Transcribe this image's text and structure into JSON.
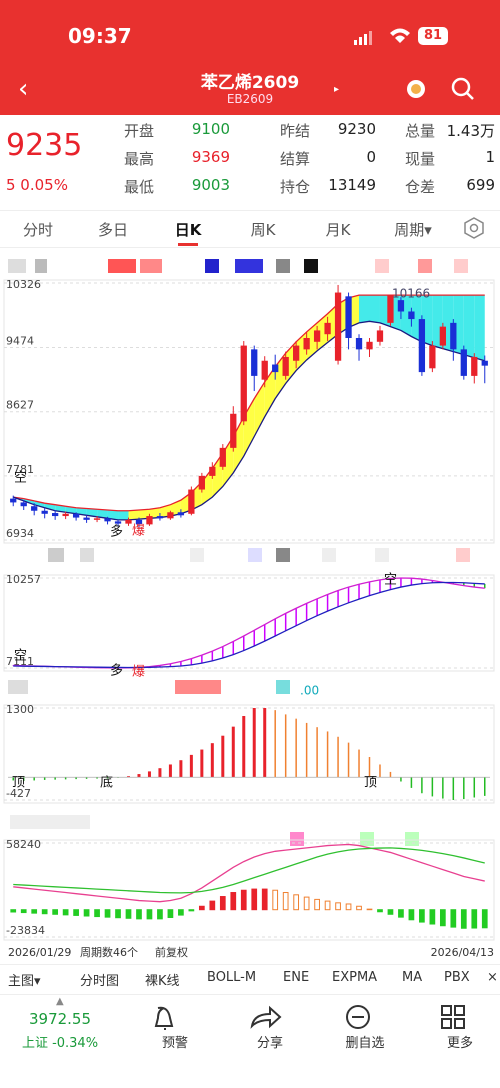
{
  "status": {
    "time": "09:37",
    "battery": "81"
  },
  "header": {
    "title": "苯乙烯2609",
    "code": "EB2609"
  },
  "quote": {
    "price": "9235",
    "change": "5 0.05%",
    "rows": [
      [
        "开盘",
        "9100",
        "昨结",
        "9230",
        "总量",
        "1.43万"
      ],
      [
        "最高",
        "9369",
        "结算",
        "0",
        "现量",
        "1"
      ],
      [
        "最低",
        "9003",
        "持仓",
        "13149",
        "仓差",
        "699"
      ]
    ]
  },
  "tabs": [
    "分时",
    "多日",
    "日K",
    "周K",
    "月K",
    "周期▾"
  ],
  "chart_data": [
    {
      "type": "candlestick",
      "ylim": [
        6934,
        10326
      ],
      "yticks": [
        10326,
        9474,
        8627,
        7781,
        6934
      ],
      "open": [
        7480,
        7430,
        7380,
        7320,
        7290,
        7250,
        7280,
        7230,
        7200,
        7220,
        7180,
        7150,
        7200,
        7140,
        7250,
        7220,
        7300,
        7280,
        7600,
        7780,
        7900,
        8150,
        8500,
        9450,
        9050,
        9250,
        9100,
        9300,
        9450,
        9550,
        9650,
        9300,
        10150,
        9600,
        9450,
        9550,
        9800,
        10100,
        9950,
        9850,
        9200,
        9500,
        9800,
        9450,
        9100,
        9300
      ],
      "close": [
        7430,
        7380,
        7320,
        7280,
        7250,
        7280,
        7230,
        7200,
        7220,
        7180,
        7150,
        7200,
        7140,
        7250,
        7220,
        7300,
        7260,
        7600,
        7780,
        7900,
        8150,
        8600,
        9500,
        9100,
        9300,
        9150,
        9350,
        9500,
        9600,
        9700,
        9800,
        10200,
        9600,
        9450,
        9550,
        9700,
        10166,
        9950,
        9850,
        9150,
        9500,
        9750,
        9450,
        9100,
        9350,
        9235
      ],
      "high": [
        7520,
        7460,
        7420,
        7360,
        7330,
        7310,
        7300,
        7260,
        7250,
        7240,
        7200,
        7230,
        7230,
        7280,
        7290,
        7320,
        7340,
        7640,
        7820,
        7960,
        8200,
        8700,
        9560,
        9500,
        9360,
        9380,
        9420,
        9560,
        9680,
        9760,
        9880,
        10300,
        10200,
        9650,
        9600,
        9760,
        10166,
        10140,
        10000,
        9900,
        9560,
        9800,
        9850,
        9500,
        9400,
        9369
      ],
      "low": [
        7380,
        7330,
        7260,
        7220,
        7200,
        7210,
        7190,
        7160,
        7170,
        7140,
        7111,
        7120,
        7100,
        7120,
        7190,
        7200,
        7230,
        7260,
        7560,
        7740,
        7860,
        8100,
        8450,
        8900,
        8950,
        9050,
        9050,
        9200,
        9380,
        9450,
        9560,
        9250,
        9450,
        9300,
        9350,
        9500,
        9760,
        9850,
        9750,
        9100,
        9150,
        9450,
        9300,
        9050,
        9000,
        9003
      ],
      "upper": [
        7500,
        7480,
        7450,
        7420,
        7400,
        7380,
        7360,
        7350,
        7340,
        7330,
        7320,
        7320,
        7330,
        7340,
        7360,
        7400,
        7460,
        7560,
        7700,
        7880,
        8080,
        8300,
        8560,
        8800,
        9020,
        9220,
        9400,
        9550,
        9680,
        9800,
        9920,
        10050,
        10130,
        10166,
        10166,
        10166,
        10166,
        10166,
        10166,
        10166,
        10166,
        10166,
        10166,
        10166,
        10166,
        10166
      ],
      "lower": [
        7500,
        7450,
        7400,
        7360,
        7320,
        7300,
        7280,
        7260,
        7240,
        7220,
        7200,
        7200,
        7210,
        7220,
        7230,
        7250,
        7280,
        7330,
        7400,
        7500,
        7640,
        7820,
        8040,
        8300,
        8560,
        8800,
        9000,
        9170,
        9310,
        9430,
        9540,
        9650,
        9740,
        9800,
        9820,
        9800,
        9750,
        9700,
        9620,
        9550,
        9500,
        9460,
        9420,
        9380,
        9340,
        9300
      ],
      "up_color": "#e8222b",
      "down_color": "#1a2fd6",
      "band_up_color": "#ffff44",
      "band_down_color": "#44eaea",
      "upper_color": "#e8222b",
      "lower_color": "#1a1a80",
      "annotations": [
        "10166",
        "空",
        "多",
        "爆"
      ]
    },
    {
      "type": "ribbon",
      "ylim": [
        7111,
        10257
      ],
      "yticks": [
        10257,
        7111
      ],
      "fast": [
        7200,
        7190,
        7180,
        7170,
        7160,
        7150,
        7140,
        7130,
        7120,
        7115,
        7111,
        7115,
        7130,
        7160,
        7200,
        7260,
        7340,
        7440,
        7560,
        7700,
        7860,
        8040,
        8230,
        8430,
        8630,
        8830,
        9020,
        9200,
        9370,
        9530,
        9680,
        9820,
        9940,
        10040,
        10120,
        10190,
        10240,
        10257,
        10250,
        10220,
        10170,
        10110,
        10050,
        9990,
        9940,
        9900
      ],
      "slow": [
        7180,
        7175,
        7170,
        7165,
        7160,
        7155,
        7150,
        7145,
        7140,
        7135,
        7130,
        7128,
        7130,
        7135,
        7145,
        7160,
        7180,
        7220,
        7280,
        7360,
        7460,
        7580,
        7720,
        7880,
        8050,
        8230,
        8410,
        8590,
        8770,
        8940,
        9100,
        9250,
        9390,
        9520,
        9640,
        9750,
        9850,
        9940,
        10010,
        10060,
        10090,
        10100,
        10100,
        10090,
        10070,
        10050
      ],
      "line_colors": [
        "#d020d0",
        "#2020c0"
      ],
      "bar_colors": [
        "#cc00ff",
        "#22bb22"
      ],
      "annotations": [
        "空",
        "多",
        "爆",
        "空"
      ]
    },
    {
      "type": "histogram",
      "ylim": [
        -427,
        1300
      ],
      "yticks": [
        1300,
        -427
      ],
      "values": [
        -60,
        -70,
        -60,
        -50,
        -45,
        -40,
        -35,
        -30,
        -25,
        -20,
        -10,
        20,
        60,
        110,
        170,
        240,
        320,
        420,
        520,
        640,
        780,
        950,
        1150,
        1300,
        1300,
        1260,
        1180,
        1100,
        1020,
        940,
        860,
        760,
        650,
        520,
        380,
        240,
        100,
        -80,
        -200,
        -300,
        -360,
        -400,
        -427,
        -410,
        -380,
        -350
      ],
      "colors": [
        "#e8222b",
        "#f08030",
        "#22bb22"
      ],
      "label": ".00",
      "annotations": [
        "顶",
        "底",
        "顶"
      ]
    },
    {
      "type": "macd",
      "ylim": [
        -23834,
        58240
      ],
      "yticks": [
        58240,
        -23834
      ],
      "dif": [
        20000,
        19000,
        18000,
        17000,
        16000,
        15000,
        14000,
        13000,
        12000,
        11000,
        10000,
        9000,
        8000,
        7500,
        7000,
        8000,
        10000,
        14000,
        19000,
        25000,
        31000,
        37000,
        42000,
        46000,
        49000,
        51000,
        52000,
        53000,
        54000,
        55000,
        56000,
        56500,
        57000,
        56000,
        54000,
        52000,
        50000,
        47000,
        44000,
        41000,
        38000,
        35000,
        32000,
        29000,
        27000,
        25000
      ],
      "dea": [
        22000,
        21500,
        21000,
        20500,
        20000,
        19500,
        19000,
        18500,
        18000,
        17500,
        17000,
        16500,
        16000,
        15500,
        15000,
        14800,
        14700,
        15000,
        16000,
        17500,
        19500,
        22000,
        25000,
        28000,
        31000,
        34000,
        37000,
        40000,
        43000,
        46000,
        48500,
        50500,
        52000,
        53000,
        53500,
        53800,
        54000,
        53500,
        52800,
        51800,
        50500,
        49000,
        47200,
        45200,
        43000,
        40800
      ],
      "bars": [
        -2000,
        -2500,
        -3000,
        -3500,
        -4000,
        -4500,
        -5000,
        -5500,
        -6000,
        -6500,
        -7000,
        -7500,
        -8000,
        -8000,
        -8000,
        -6800,
        -4700,
        -1000,
        3000,
        7500,
        11500,
        15000,
        17000,
        18000,
        18000,
        17000,
        15000,
        13000,
        11000,
        9000,
        7500,
        6000,
        5000,
        3000,
        500,
        -1800,
        -4000,
        -6500,
        -8800,
        -10800,
        -12500,
        -14000,
        -15200,
        -16200,
        -16000,
        -15800
      ],
      "line_colors": [
        "#e84090",
        "#30c030"
      ],
      "bar_colors": [
        "#e8222b",
        "#f08030",
        "#22cc22"
      ]
    }
  ],
  "period": {
    "start": "2026/01/29",
    "count": "周期数46个",
    "adjust": "前复权",
    "end": "2026/04/13"
  },
  "toolbar": [
    "主图▾",
    "分时图",
    "裸K线",
    "BOLL-M",
    "ENE",
    "EXPMA",
    "MA",
    "PBX",
    "×"
  ],
  "nav": {
    "index_value": "3972.55",
    "index_name": "上证 -0.34%",
    "items": [
      "预警",
      "分享",
      "删自选",
      "更多"
    ]
  }
}
